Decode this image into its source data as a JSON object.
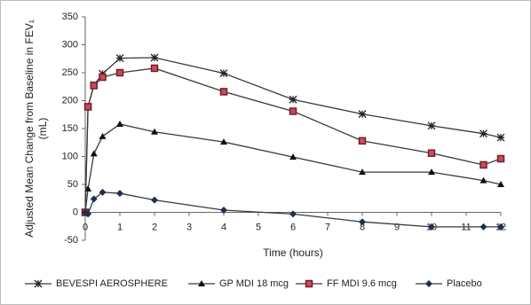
{
  "chart_data": {
    "type": "line",
    "x_label": "Time (hours)",
    "y_label": [
      "Adjusted Mean Change from Baseline in FEV₁",
      "(mL)"
    ],
    "x": [
      0,
      0.08,
      0.25,
      0.5,
      1,
      2,
      4,
      6,
      8,
      10,
      11.5,
      12
    ],
    "xlim": [
      0,
      12
    ],
    "xticks": [
      0,
      1,
      2,
      3,
      4,
      5,
      6,
      7,
      8,
      9,
      10,
      11,
      12
    ],
    "ylim": [
      -50,
      350
    ],
    "yticks": [
      -50,
      0,
      50,
      100,
      150,
      200,
      250,
      300,
      350
    ],
    "grid": false,
    "legend": "bottom",
    "series": [
      {
        "name": "BEVESPI AEROSPHERE",
        "color": "#222222",
        "marker": "asterisk",
        "values": [
          0,
          189,
          228,
          248,
          276,
          277,
          249,
          202,
          176,
          155,
          141,
          134
        ]
      },
      {
        "name": "GP MDI 18  mcg",
        "color": "#111111",
        "marker": "triangle",
        "values": [
          0,
          42,
          105,
          136,
          158,
          144,
          126,
          99,
          72,
          72,
          57,
          50
        ]
      },
      {
        "name": "FF MDI 9.6  mcg",
        "color": "#7a1a2a",
        "marker": "square",
        "values": [
          0,
          189,
          227,
          242,
          250,
          258,
          216,
          181,
          128,
          106,
          85,
          96
        ]
      },
      {
        "name": "Placebo",
        "color": "#1e2f4f",
        "marker": "diamond",
        "values": [
          0,
          -3,
          24,
          36,
          34,
          22,
          4,
          -3,
          -17,
          -26,
          -26,
          -26
        ]
      }
    ]
  }
}
